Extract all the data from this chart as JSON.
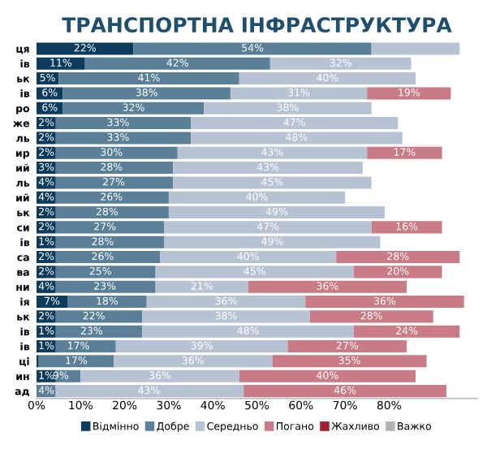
{
  "chart_data": {
    "type": "bar",
    "orientation": "horizontal",
    "stacked": true,
    "title": "ТРАНСПОРТНА ІНФРАСТРУКТУРА",
    "categories": [
      "ця",
      "ів",
      "ьк",
      "ів",
      "ро",
      "же",
      "ль",
      "ир",
      "ий",
      "ль",
      "ий",
      "ьк",
      "си",
      "ів",
      "са",
      "ва",
      "ни",
      "ія",
      "ьк",
      "ів",
      "ів",
      "ці",
      "ин",
      "ад"
    ],
    "series": [
      {
        "name": "Відмінно",
        "color": "#0d3b5e",
        "values": [
          22,
          11,
          5,
          6,
          6,
          2,
          2,
          2,
          3,
          4,
          4,
          2,
          2,
          1,
          2,
          2,
          4,
          7,
          2,
          1,
          1,
          0.5,
          1,
          0
        ],
        "value_labels": [
          "22%",
          "11%",
          "5%",
          "6%",
          "6%",
          "2%",
          "2%",
          "2%",
          "3%",
          "4%",
          "4%",
          "2%",
          "2%",
          "1%",
          "2%",
          "2%",
          "4%",
          "7%",
          "2%",
          "1%",
          "1%",
          null,
          "1%",
          null
        ]
      },
      {
        "name": "Добре",
        "color": "#5c7f98",
        "values": [
          54,
          42,
          41,
          38,
          32,
          33,
          33,
          30,
          28,
          27,
          26,
          28,
          27,
          28,
          26,
          25,
          23,
          18,
          22,
          23,
          17,
          17,
          9,
          4
        ],
        "value_labels": [
          "54%",
          "42%",
          "41%",
          "38%",
          "32%",
          "33%",
          "33%",
          "30%",
          "28%",
          "27%",
          "26%",
          "28%",
          "27%",
          "28%",
          "26%",
          "25%",
          "23%",
          "18%",
          "22%",
          "23%",
          "17%",
          "17%",
          "9%",
          "4%"
        ]
      },
      {
        "name": "Середньо",
        "color": "#b7c3d3",
        "values": [
          20,
          32,
          40,
          31,
          38,
          47,
          48,
          43,
          43,
          45,
          40,
          49,
          47,
          49,
          40,
          45,
          21,
          36,
          38,
          48,
          39,
          36,
          36,
          43
        ],
        "value_labels": [
          null,
          "32%",
          "40%",
          "31%",
          "38%",
          "47%",
          "48%",
          "43%",
          "43%",
          "45%",
          "40%",
          "49%",
          "47%",
          "49%",
          "40%",
          "45%",
          "21%",
          "36%",
          "38%",
          "48%",
          "39%",
          "36%",
          "36%",
          "43%"
        ]
      },
      {
        "name": "Погано",
        "color": "#c97b86",
        "values": [
          null,
          null,
          null,
          19,
          null,
          null,
          null,
          17,
          null,
          null,
          null,
          null,
          16,
          null,
          28,
          20,
          36,
          36,
          28,
          24,
          27,
          35,
          40,
          46
        ],
        "value_labels": [
          null,
          null,
          null,
          "19%",
          null,
          null,
          null,
          "17%",
          null,
          null,
          null,
          null,
          "16%",
          null,
          "28%",
          "20%",
          "36%",
          "36%",
          "28%",
          "24%",
          "27%",
          "35%",
          "40%",
          "46%"
        ]
      },
      {
        "name": "Жахливо",
        "color": "#a31f34",
        "values": [
          null,
          null,
          null,
          null,
          null,
          null,
          null,
          null,
          null,
          null,
          null,
          null,
          null,
          null,
          null,
          null,
          null,
          null,
          null,
          null,
          null,
          null,
          null,
          null
        ]
      },
      {
        "name": "Важко",
        "color": "#b3b3b3",
        "values": [
          null,
          null,
          null,
          null,
          null,
          null,
          null,
          null,
          null,
          null,
          null,
          null,
          null,
          null,
          null,
          null,
          null,
          null,
          null,
          null,
          null,
          null,
          null,
          null
        ]
      }
    ],
    "xlim": [
      0,
      100
    ],
    "xticks": [
      {
        "value": 0,
        "label": "0%"
      },
      {
        "value": 10,
        "label": "10%"
      },
      {
        "value": 20,
        "label": "20%"
      },
      {
        "value": 30,
        "label": "30%"
      },
      {
        "value": 40,
        "label": "40%"
      },
      {
        "value": 50,
        "label": "50%"
      },
      {
        "value": 60,
        "label": "60%"
      },
      {
        "value": 70,
        "label": "70%"
      },
      {
        "value": 80,
        "label": "80%"
      }
    ],
    "legend": "bottom",
    "grid": false
  }
}
